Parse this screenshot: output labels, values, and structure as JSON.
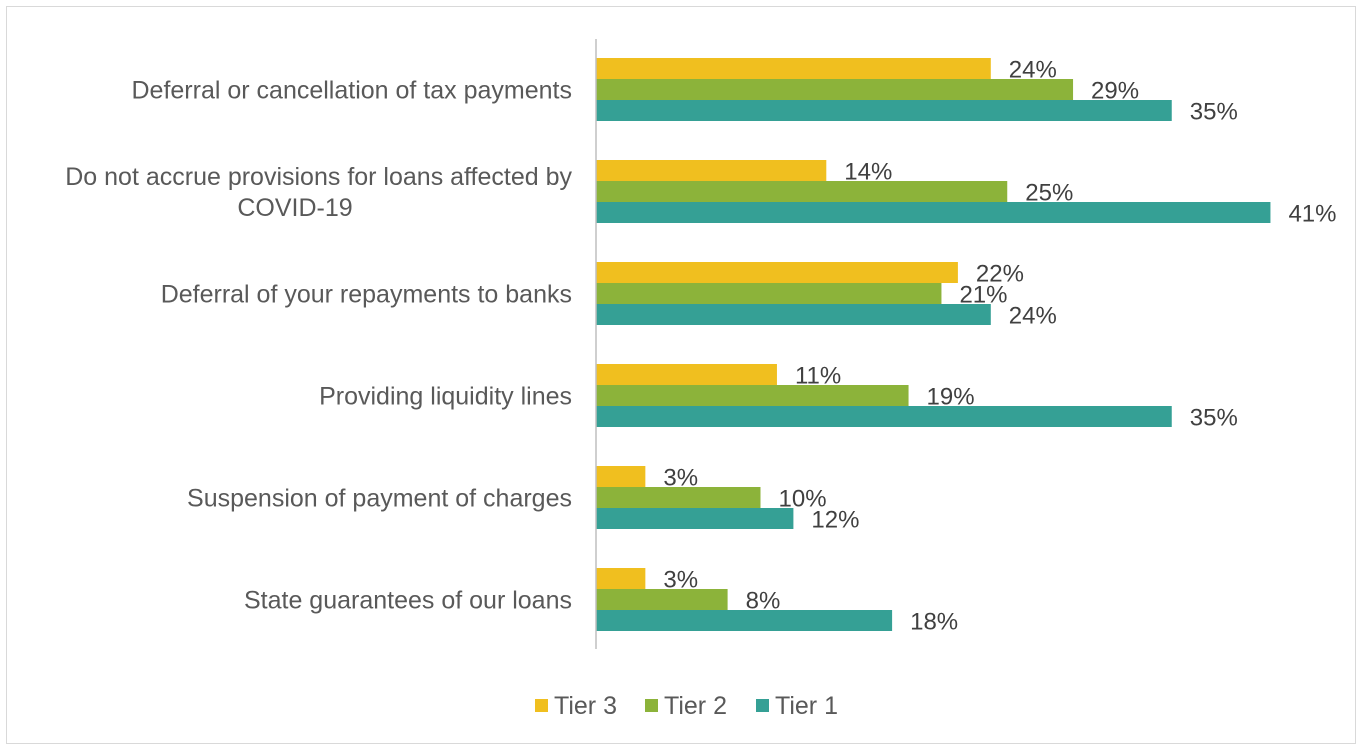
{
  "chart_data": {
    "type": "bar",
    "orientation": "horizontal",
    "categories": [
      [
        "Deferral or cancellation of tax payments"
      ],
      [
        "Do not accrue provisions for loans affected by",
        "COVID-19"
      ],
      [
        "Deferral of your repayments to banks"
      ],
      [
        "Providing liquidity lines"
      ],
      [
        "Suspension of payment of charges"
      ],
      [
        "State guarantees of our loans"
      ]
    ],
    "series": [
      {
        "name": "Tier 3",
        "color": "#f0bf1f",
        "values": [
          24,
          14,
          22,
          11,
          3,
          3
        ],
        "labels": [
          "24%",
          "14%",
          "22%",
          "11%",
          "3%",
          "3%"
        ]
      },
      {
        "name": "Tier 2",
        "color": "#8cb33a",
        "values": [
          29,
          25,
          21,
          19,
          10,
          8
        ],
        "labels": [
          "29%",
          "25%",
          "21%",
          "19%",
          "10%",
          "8%"
        ]
      },
      {
        "name": "Tier 1",
        "color": "#35a095",
        "values": [
          35,
          41,
          24,
          35,
          12,
          18
        ],
        "labels": [
          "35%",
          "41%",
          "24%",
          "35%",
          "12%",
          "18%"
        ]
      }
    ],
    "xlim": [
      0,
      44
    ],
    "grid": false,
    "legend": "bottom",
    "data_labels": true
  }
}
